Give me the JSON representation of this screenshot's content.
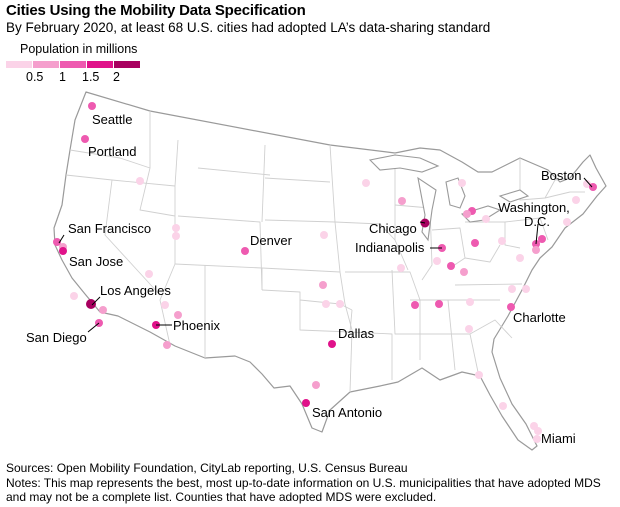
{
  "title": "Cities Using the Mobility Data Specification",
  "subtitle": "By February 2020, at least 68 U.S. cities had adopted LA’s data-sharing standard",
  "legend": {
    "title": "Population in millions",
    "swatches": [
      "#fbd3e8",
      "#f59fcd",
      "#ee5ab0",
      "#e0128a",
      "#a8005f"
    ],
    "labels": [
      "0.5",
      "1",
      "1.5",
      "2"
    ]
  },
  "labels": {
    "seattle": "Seattle",
    "portland": "Portland",
    "san_francisco": "San Francisco",
    "san_jose": "San Jose",
    "los_angeles": "Los Angeles",
    "san_diego": "San Diego",
    "phoenix": "Phoenix",
    "denver": "Denver",
    "dallas": "Dallas",
    "san_antonio": "San Antonio",
    "chicago": "Chicago",
    "indianapolis": "Indianapolis",
    "boston": "Boston",
    "washington_1": "Washington,",
    "washington_2": "D.C.",
    "charlotte": "Charlotte",
    "miami": "Miami"
  },
  "footer": {
    "sources": "Sources: Open Mobility Foundation, CityLab reporting, U.S. Census Bureau",
    "notes": "Notes: This map represents the best, most up-to-date information on U.S. municipalities that have adopted MDS and may not be a complete list. Counties that have adopted MDS were excluded."
  }
}
